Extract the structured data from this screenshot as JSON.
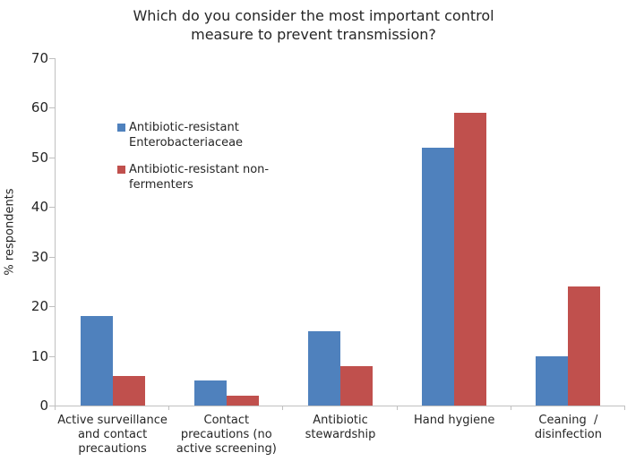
{
  "chart_data": {
    "type": "bar",
    "title": "Which do you consider the most important control\nmeasure to prevent transmission?",
    "xlabel": "",
    "ylabel": "% respondents",
    "ylim": [
      0,
      70
    ],
    "yticks": [
      0,
      10,
      20,
      30,
      40,
      50,
      60,
      70
    ],
    "grid": false,
    "legend_position": "inside-upper-left",
    "categories": [
      "Active surveillance\nand contact\nprecautions",
      "Contact\nprecautions (no\nactive screening)",
      "Antibiotic\nstewardship",
      "Hand hygiene",
      "Ceaning  /\ndisinfection"
    ],
    "series": [
      {
        "name": "Antibiotic-resistant\nEnterobacteriaceae",
        "color": "#4F81BD",
        "values": [
          18,
          5,
          15,
          52,
          10
        ]
      },
      {
        "name": "Antibiotic-resistant non-\nfermenters",
        "color": "#C0504D",
        "values": [
          6,
          2,
          8,
          59,
          24
        ]
      }
    ],
    "axis_color": "#c0c0c0",
    "text_color": "#262626",
    "background": "#ffffff"
  }
}
